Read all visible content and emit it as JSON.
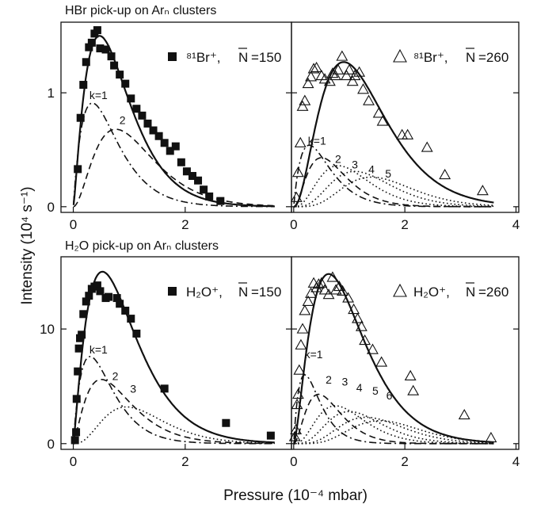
{
  "figure": {
    "y_axis_title": "Intensity (10⁴ s⁻¹)",
    "x_axis_title": "Pressure (10⁻⁴ mbar)"
  },
  "chart_data": [
    {
      "type": "scatter",
      "section_title": "HBr pick-up on Arₙ clusters",
      "legend": {
        "marker": "■",
        "ion": "⁸¹Br⁺,",
        "nbar": "N",
        "eq": "=150"
      },
      "marker": "square",
      "xlim": [
        0,
        4
      ],
      "ylim": [
        0,
        1.6
      ],
      "xticks": [
        0,
        2,
        4
      ],
      "yticks": [
        0,
        1
      ],
      "xtick_labels": [
        "0",
        "2",
        ""
      ],
      "ytick_labels": [
        "0",
        "1"
      ],
      "points": [
        [
          0.08,
          0.33
        ],
        [
          0.13,
          0.78
        ],
        [
          0.18,
          1.07
        ],
        [
          0.23,
          1.27
        ],
        [
          0.28,
          1.4
        ],
        [
          0.33,
          1.44
        ],
        [
          0.38,
          1.52
        ],
        [
          0.43,
          1.55
        ],
        [
          0.48,
          1.39
        ],
        [
          0.58,
          1.38
        ],
        [
          0.68,
          1.32
        ],
        [
          0.73,
          1.24
        ],
        [
          0.83,
          1.16
        ],
        [
          0.93,
          1.08
        ],
        [
          1.03,
          0.95
        ],
        [
          1.13,
          0.86
        ],
        [
          1.23,
          0.8
        ],
        [
          1.33,
          0.73
        ],
        [
          1.43,
          0.67
        ],
        [
          1.53,
          0.62
        ],
        [
          1.63,
          0.56
        ],
        [
          1.73,
          0.49
        ],
        [
          1.83,
          0.53
        ],
        [
          1.93,
          0.39
        ],
        [
          2.03,
          0.31
        ],
        [
          2.13,
          0.27
        ],
        [
          2.23,
          0.23
        ],
        [
          2.33,
          0.15
        ],
        [
          2.43,
          0.09
        ],
        [
          2.63,
          0.05
        ]
      ],
      "series": [
        {
          "k": 1,
          "style": "dashdot",
          "peak_x": 0.34,
          "peak_y": 0.91,
          "order": 1
        },
        {
          "k": 2,
          "style": "dashed",
          "peak_x": 0.76,
          "peak_y": 0.68,
          "order": 2
        },
        {
          "k": 0,
          "style": "solid",
          "name": "total",
          "peak_x": 0.47,
          "peak_y": 1.5,
          "order": 1.3
        }
      ],
      "annotations": [
        {
          "text": "k=1",
          "x": 0.45,
          "y": 0.98
        },
        {
          "text": "2",
          "x": 0.88,
          "y": 0.76
        }
      ]
    },
    {
      "type": "scatter",
      "legend": {
        "marker": "△",
        "ion": "⁸¹Br⁺,",
        "nbar": "N",
        "eq": "=260"
      },
      "marker": "triangle",
      "xlim": [
        0,
        4
      ],
      "ylim": [
        0,
        1.6
      ],
      "xticks": [
        0,
        2,
        4
      ],
      "yticks": [
        0,
        1
      ],
      "xtick_labels": [
        "0",
        "2",
        "4"
      ],
      "ytick_labels": [
        "",
        ""
      ],
      "points": [
        [
          0.05,
          0.08
        ],
        [
          0.08,
          0.3
        ],
        [
          0.12,
          0.56
        ],
        [
          0.16,
          0.88
        ],
        [
          0.2,
          0.93
        ],
        [
          0.26,
          1.08
        ],
        [
          0.31,
          1.14
        ],
        [
          0.36,
          1.21
        ],
        [
          0.41,
          1.22
        ],
        [
          0.5,
          1.15
        ],
        [
          0.56,
          1.12
        ],
        [
          0.65,
          1.1
        ],
        [
          0.7,
          1.17
        ],
        [
          0.75,
          1.15
        ],
        [
          0.8,
          1.2
        ],
        [
          0.87,
          1.32
        ],
        [
          0.95,
          1.15
        ],
        [
          1.0,
          1.2
        ],
        [
          1.06,
          1.1
        ],
        [
          1.1,
          1.15
        ],
        [
          1.18,
          1.18
        ],
        [
          1.25,
          1.03
        ],
        [
          1.35,
          0.93
        ],
        [
          1.53,
          0.82
        ],
        [
          1.6,
          0.75
        ],
        [
          1.95,
          0.63
        ],
        [
          2.05,
          0.63
        ],
        [
          2.4,
          0.52
        ],
        [
          2.72,
          0.28
        ],
        [
          3.4,
          0.14
        ]
      ],
      "series": [
        {
          "k": 1,
          "style": "dashdot",
          "peak_x": 0.28,
          "peak_y": 0.54,
          "order": 1
        },
        {
          "k": 2,
          "style": "dashed",
          "peak_x": 0.5,
          "peak_y": 0.43,
          "order": 2
        },
        {
          "k": 3,
          "style": "dotted",
          "peak_x": 0.8,
          "peak_y": 0.36,
          "order": 3
        },
        {
          "k": 4,
          "style": "dotted",
          "peak_x": 1.1,
          "peak_y": 0.31,
          "order": 4
        },
        {
          "k": 5,
          "style": "dotted",
          "peak_x": 1.4,
          "peak_y": 0.26,
          "order": 5
        },
        {
          "k": 0,
          "style": "solid",
          "name": "total",
          "peak_x": 0.9,
          "peak_y": 1.27,
          "order": 2.2
        }
      ],
      "annotations": [
        {
          "text": "k=1",
          "x": 0.42,
          "y": 0.58
        },
        {
          "text": "2",
          "x": 0.8,
          "y": 0.42
        },
        {
          "text": "3",
          "x": 1.1,
          "y": 0.37
        },
        {
          "text": "4",
          "x": 1.4,
          "y": 0.33
        },
        {
          "text": "5",
          "x": 1.7,
          "y": 0.29
        }
      ]
    },
    {
      "type": "scatter",
      "section_title": "H₂O pick-up on Arₙ clusters",
      "legend": {
        "marker": "■",
        "ion": "H₂O⁺,",
        "nbar": "N",
        "eq": "=150"
      },
      "marker": "square",
      "xlim": [
        0,
        4
      ],
      "ylim": [
        0,
        16
      ],
      "xticks": [
        0,
        2,
        4
      ],
      "yticks": [
        0,
        10
      ],
      "xtick_labels": [
        "0",
        "2",
        ""
      ],
      "ytick_labels": [
        "0",
        "10"
      ],
      "points": [
        [
          0.03,
          0.3
        ],
        [
          0.05,
          1.0
        ],
        [
          0.06,
          3.9
        ],
        [
          0.08,
          6.3
        ],
        [
          0.1,
          8.3
        ],
        [
          0.12,
          9.2
        ],
        [
          0.15,
          9.5
        ],
        [
          0.18,
          11.3
        ],
        [
          0.23,
          12.4
        ],
        [
          0.28,
          12.9
        ],
        [
          0.33,
          13.5
        ],
        [
          0.38,
          13.7
        ],
        [
          0.43,
          13.8
        ],
        [
          0.48,
          13.3
        ],
        [
          0.58,
          12.7
        ],
        [
          0.63,
          12.8
        ],
        [
          0.78,
          12.7
        ],
        [
          0.83,
          12.2
        ],
        [
          0.93,
          11.6
        ],
        [
          1.03,
          10.9
        ],
        [
          1.13,
          9.6
        ],
        [
          1.63,
          4.8
        ],
        [
          2.73,
          1.8
        ],
        [
          3.53,
          0.7
        ]
      ],
      "series": [
        {
          "k": 1,
          "style": "dashdot",
          "peak_x": 0.3,
          "peak_y": 7.6,
          "order": 1
        },
        {
          "k": 2,
          "style": "dashed",
          "peak_x": 0.5,
          "peak_y": 5.6,
          "order": 1.4
        },
        {
          "k": 3,
          "style": "dotted",
          "peak_x": 0.95,
          "peak_y": 3.2,
          "order": 3
        },
        {
          "k": 0,
          "style": "solid",
          "name": "total",
          "peak_x": 0.52,
          "peak_y": 15.0,
          "order": 1.25
        }
      ],
      "annotations": [
        {
          "text": "k=1",
          "x": 0.45,
          "y": 8.2
        },
        {
          "text": "2",
          "x": 0.75,
          "y": 5.9
        },
        {
          "text": "3",
          "x": 1.07,
          "y": 4.8
        }
      ]
    },
    {
      "type": "scatter",
      "legend": {
        "marker": "△",
        "ion": "H₂O⁺,",
        "nbar": "N",
        "eq": "=260"
      },
      "marker": "triangle",
      "xlim": [
        0,
        4
      ],
      "ylim": [
        0,
        16
      ],
      "xticks": [
        0,
        2,
        4
      ],
      "yticks": [
        0,
        10
      ],
      "xtick_labels": [
        "0",
        "2",
        "4"
      ],
      "ytick_labels": [
        "",
        ""
      ],
      "points": [
        [
          0.02,
          0.6
        ],
        [
          0.04,
          1.2
        ],
        [
          0.06,
          3.4
        ],
        [
          0.08,
          4.3
        ],
        [
          0.1,
          6.4
        ],
        [
          0.13,
          8.6
        ],
        [
          0.16,
          10.0
        ],
        [
          0.2,
          11.6
        ],
        [
          0.26,
          12.4
        ],
        [
          0.31,
          13.1
        ],
        [
          0.36,
          14.0
        ],
        [
          0.41,
          13.6
        ],
        [
          0.45,
          13.9
        ],
        [
          0.5,
          14.0
        ],
        [
          0.56,
          13.4
        ],
        [
          0.63,
          13.0
        ],
        [
          0.7,
          14.5
        ],
        [
          0.76,
          13.4
        ],
        [
          0.82,
          13.7
        ],
        [
          0.88,
          13.3
        ],
        [
          0.98,
          12.7
        ],
        [
          1.08,
          11.7
        ],
        [
          1.15,
          10.9
        ],
        [
          1.22,
          10.2
        ],
        [
          1.28,
          9.0
        ],
        [
          1.42,
          8.2
        ],
        [
          1.58,
          7.1
        ],
        [
          2.1,
          5.9
        ],
        [
          2.15,
          4.6
        ],
        [
          3.07,
          2.5
        ],
        [
          3.55,
          0.5
        ]
      ],
      "series": [
        {
          "k": 1,
          "style": "dashdot",
          "peak_x": 0.2,
          "peak_y": 6.0,
          "order": 1
        },
        {
          "k": 2,
          "style": "dashed",
          "peak_x": 0.45,
          "peak_y": 4.3,
          "order": 2
        },
        {
          "k": 3,
          "style": "dotted",
          "peak_x": 0.75,
          "peak_y": 3.3,
          "order": 3
        },
        {
          "k": 4,
          "style": "dotted",
          "peak_x": 1.0,
          "peak_y": 2.8,
          "order": 4
        },
        {
          "k": 5,
          "style": "dotted",
          "peak_x": 1.3,
          "peak_y": 2.3,
          "order": 5
        },
        {
          "k": 6,
          "style": "dotted",
          "peak_x": 1.55,
          "peak_y": 2.0,
          "order": 6
        },
        {
          "k": 0,
          "style": "solid",
          "name": "total",
          "peak_x": 0.63,
          "peak_y": 14.8,
          "order": 1.6
        }
      ],
      "annotations": [
        {
          "text": "k=1",
          "x": 0.36,
          "y": 7.8
        },
        {
          "text": "2",
          "x": 0.63,
          "y": 5.6
        },
        {
          "text": "3",
          "x": 0.92,
          "y": 5.4
        },
        {
          "text": "4",
          "x": 1.18,
          "y": 4.9
        },
        {
          "text": "5",
          "x": 1.47,
          "y": 4.6
        },
        {
          "text": "6",
          "x": 1.72,
          "y": 4.2
        }
      ]
    }
  ]
}
